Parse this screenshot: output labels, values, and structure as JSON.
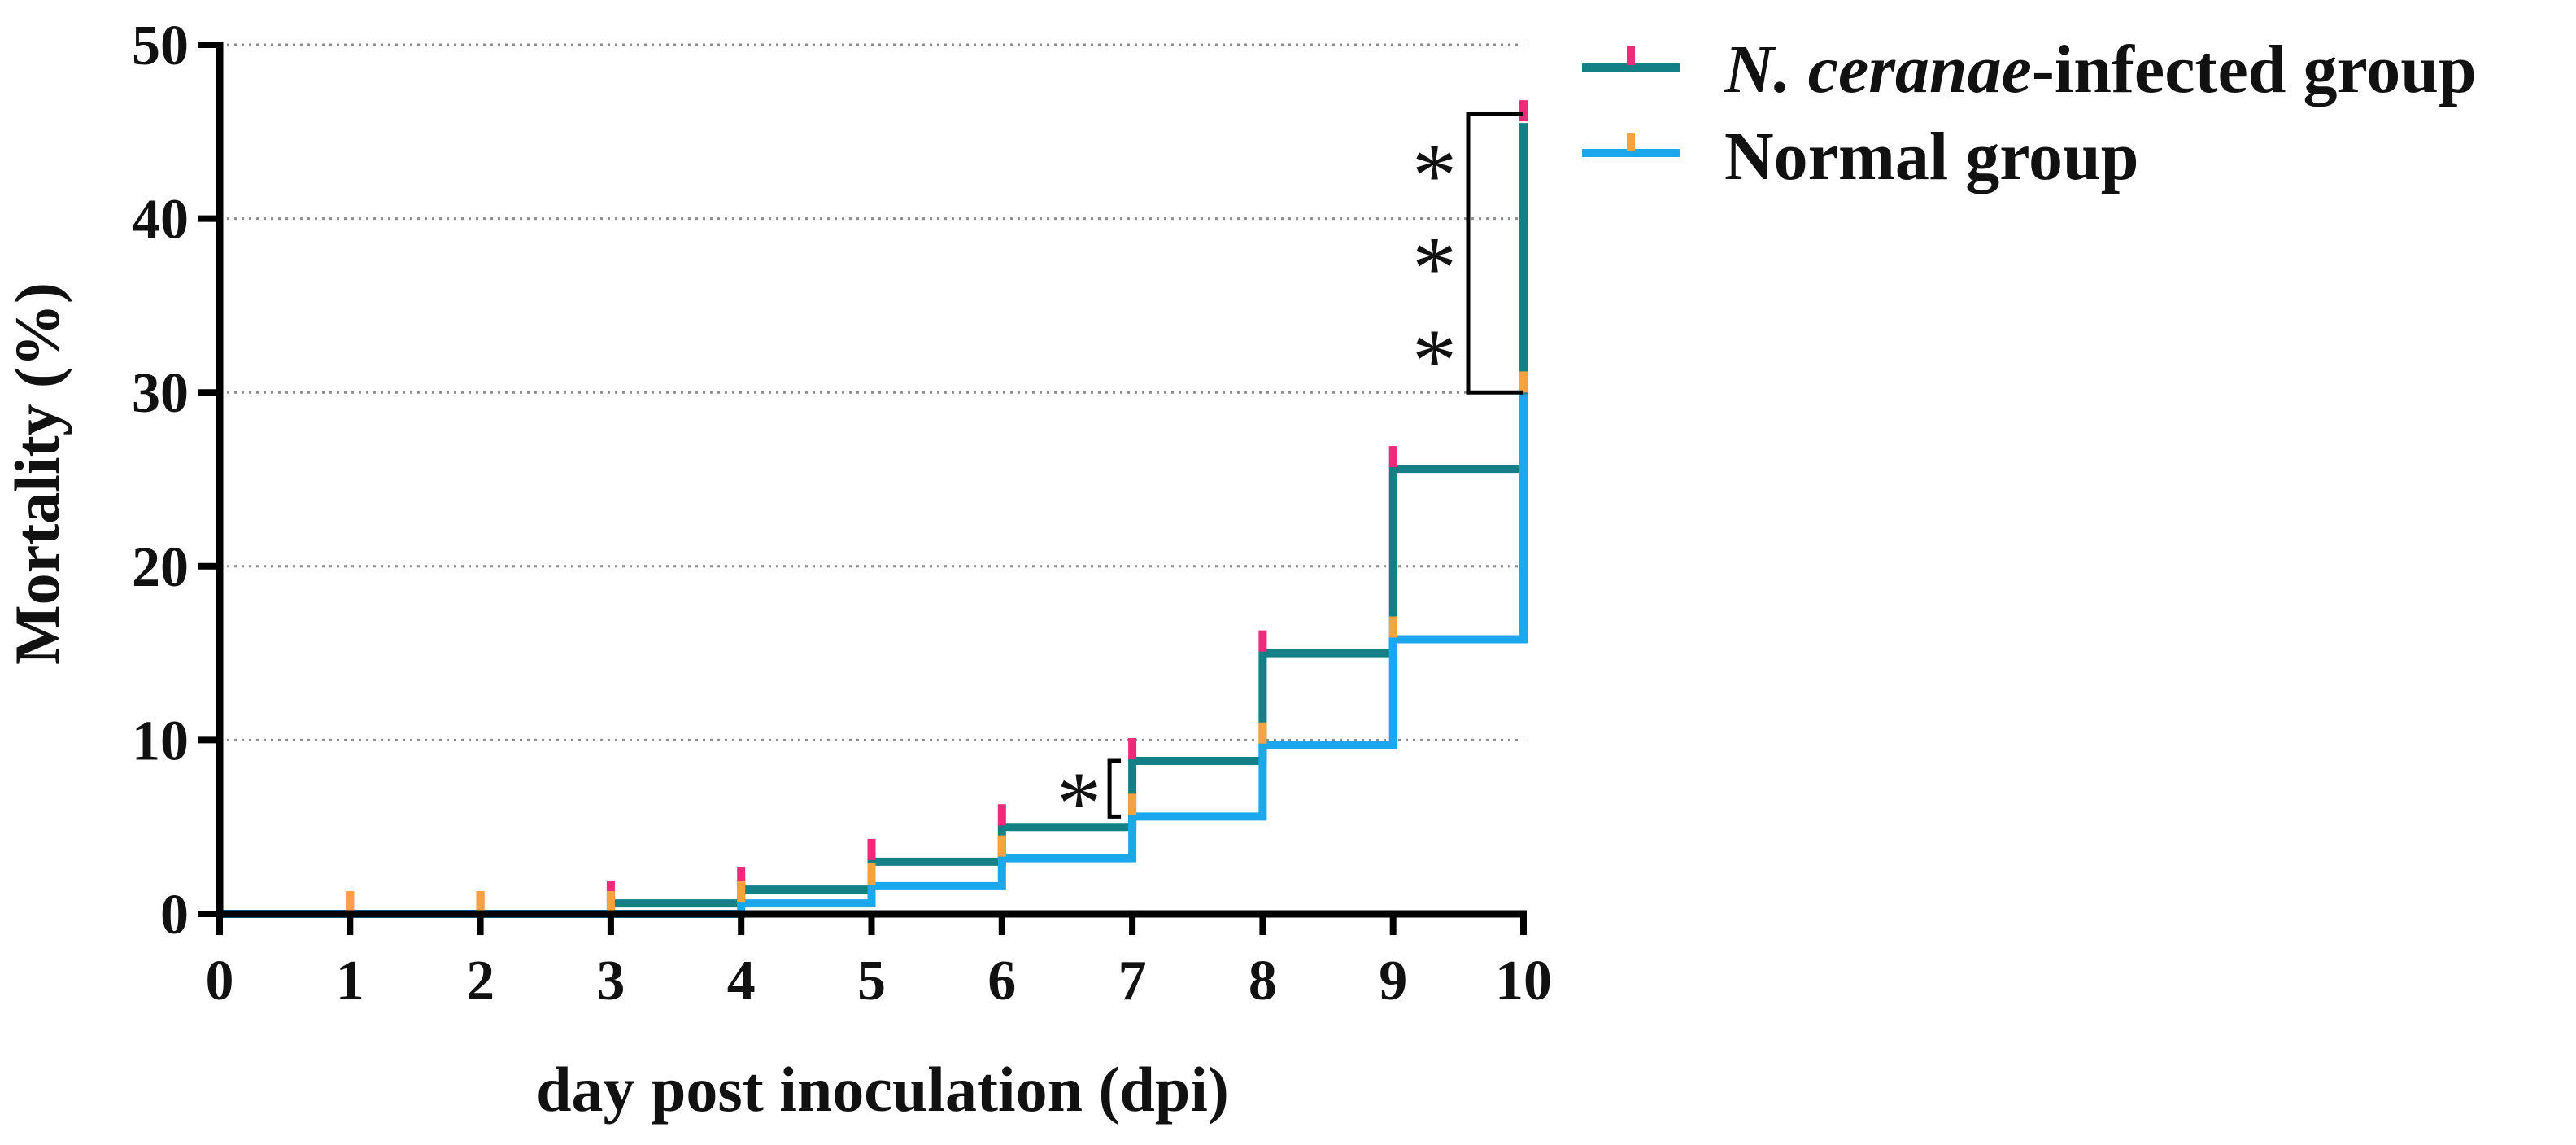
{
  "chart_data": {
    "type": "line",
    "step": true,
    "title": "",
    "xlabel": "day post inoculation (dpi)",
    "ylabel": "Mortality (%)",
    "xlim": [
      0,
      10
    ],
    "ylim": [
      0,
      50
    ],
    "x_ticks": [
      0,
      1,
      2,
      3,
      4,
      5,
      6,
      7,
      8,
      9,
      10
    ],
    "y_ticks": [
      0,
      10,
      20,
      30,
      40,
      50
    ],
    "grid": "horizontal dotted",
    "legend_position": "top-right",
    "series": [
      {
        "name": "N. ceranae-infected group",
        "name_italic": "N. ceranae",
        "name_rest": "-infected group",
        "color": "#138086",
        "tick_color": "#ee2a7b",
        "x": [
          0,
          1,
          2,
          3,
          4,
          5,
          6,
          7,
          8,
          9,
          10
        ],
        "y": [
          0,
          0,
          0,
          0.6,
          1.4,
          3.0,
          5.0,
          8.8,
          15.0,
          25.6,
          45.5
        ]
      },
      {
        "name": "Normal group",
        "color": "#1aa7ec",
        "tick_color": "#f4a340",
        "x": [
          0,
          1,
          2,
          3,
          4,
          5,
          6,
          7,
          8,
          9,
          10
        ],
        "y": [
          0,
          0,
          0,
          0,
          0.6,
          1.6,
          3.2,
          5.6,
          9.7,
          15.8,
          29.9
        ]
      }
    ],
    "annotations": [
      {
        "label": "*",
        "x": 7,
        "y_from": 5.6,
        "y_to": 8.8
      },
      {
        "label": "***",
        "x": 10,
        "y_from": 30.0,
        "y_to": 46.0
      }
    ]
  }
}
